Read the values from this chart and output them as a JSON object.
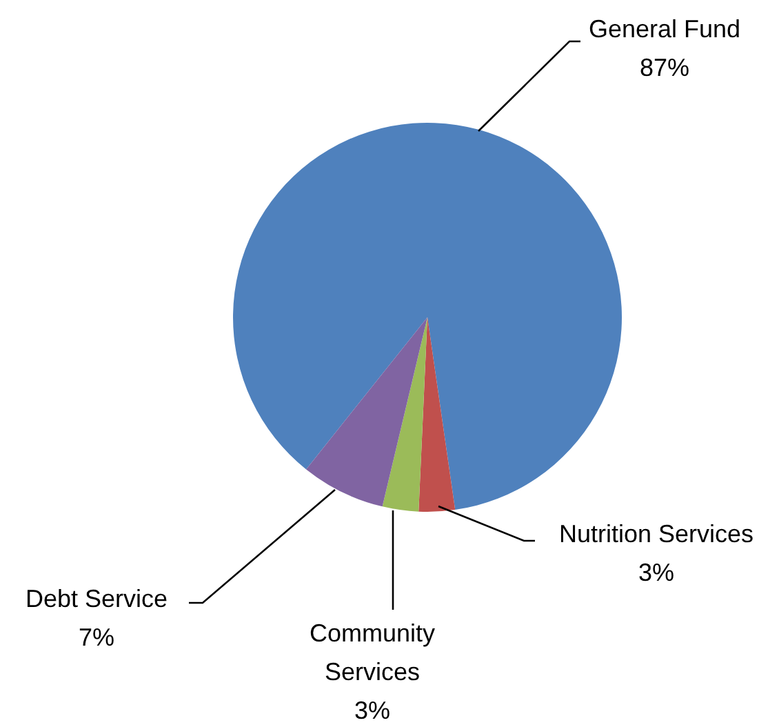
{
  "chart_data": {
    "type": "pie",
    "categories": [
      "General Fund",
      "Nutrition Services",
      "Community Services",
      "Debt Service"
    ],
    "values": [
      87,
      3,
      3,
      7
    ],
    "value_labels": [
      "87%",
      "3%",
      "3%",
      "7%"
    ],
    "colors": [
      "#4f81bd",
      "#c0504d",
      "#9bbb59",
      "#8064a2"
    ]
  }
}
